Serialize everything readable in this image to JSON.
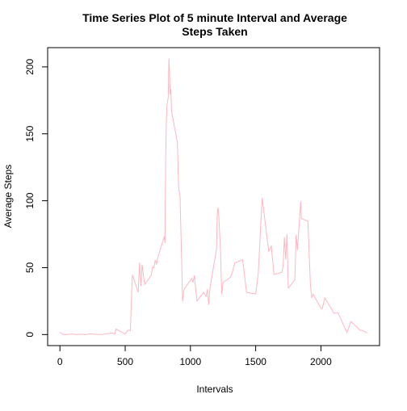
{
  "chart_data": {
    "type": "line",
    "title": "Time Series Plot of 5 minute Interval and Average Steps Taken",
    "xlabel": "Intervals",
    "ylabel": "Average Steps",
    "x": [
      0,
      20,
      40,
      100,
      120,
      150,
      200,
      230,
      300,
      330,
      400,
      420,
      430,
      450,
      500,
      520,
      540,
      545,
      555,
      600,
      610,
      620,
      630,
      640,
      650,
      700,
      710,
      720,
      730,
      740,
      750,
      800,
      805,
      810,
      815,
      820,
      830,
      835,
      840,
      845,
      850,
      855,
      900,
      910,
      920,
      930,
      940,
      950,
      1000,
      1010,
      1020,
      1030,
      1040,
      1050,
      1100,
      1110,
      1120,
      1130,
      1140,
      1150,
      1200,
      1205,
      1210,
      1215,
      1230,
      1240,
      1250,
      1300,
      1310,
      1320,
      1340,
      1400,
      1430,
      1500,
      1520,
      1540,
      1550,
      1600,
      1620,
      1640,
      1700,
      1710,
      1720,
      1730,
      1740,
      1750,
      1800,
      1810,
      1820,
      1830,
      1845,
      1850,
      1900,
      1920,
      1930,
      1940,
      2000,
      2010,
      2030,
      2100,
      2130,
      2200,
      2230,
      2300,
      2330,
      2355
    ],
    "series": [
      {
        "name": "Average Steps",
        "color": "#ffb6c1",
        "values": [
          1.7,
          0.1,
          0,
          0.4,
          0,
          0.3,
          0,
          0.6,
          0,
          0.2,
          1.2,
          0.3,
          4.1,
          3.1,
          0.3,
          3.3,
          3.0,
          18.0,
          44.5,
          31.5,
          53.8,
          36.1,
          52.1,
          44.0,
          37.4,
          44.4,
          50.5,
          49.9,
          55.7,
          52.3,
          57.5,
          73.4,
          68.2,
          129.4,
          157.5,
          171.2,
          177.3,
          206.2,
          195.9,
          179.6,
          183.4,
          167.0,
          143.5,
          109.1,
          103.8,
          66.2,
          24.8,
          33.6,
          40.6,
          42.0,
          38.9,
          44.3,
          34.4,
          25.1,
          31.4,
          29.7,
          28.4,
          33.8,
          22.3,
          35.1,
          63.9,
          87.6,
          94.8,
          92.8,
          63.9,
          30.0,
          38.9,
          42.3,
          43.3,
          46.2,
          53.5,
          55.9,
          31.5,
          30.3,
          45.9,
          84.4,
          102.1,
          62.1,
          66.1,
          44.7,
          46.6,
          50.7,
          72.7,
          56.0,
          75.0,
          34.8,
          40.7,
          74.7,
          63.2,
          77.7,
          99.5,
          86.6,
          84.9,
          36.1,
          27.4,
          30.2,
          19.6,
          19.3,
          27.3,
          15.9,
          16.4,
          1.6,
          9.8,
          3.3,
          2.6,
          1.1
        ]
      }
    ],
    "xlim": [
      -94.2,
      2449.2
    ],
    "xticks": [
      0,
      500,
      1000,
      1500,
      2000
    ],
    "ylim": [
      -8.25,
      214.4
    ],
    "yticks": [
      0,
      50,
      100,
      150,
      200
    ]
  }
}
